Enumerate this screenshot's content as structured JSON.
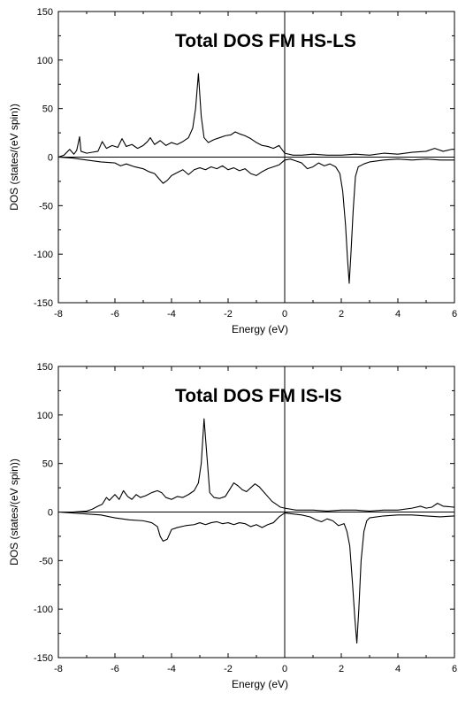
{
  "chart_data": [
    {
      "type": "line",
      "title": "Total DOS FM HS-LS",
      "xlabel": "Energy (eV)",
      "ylabel": "DOS (states/(eV spin))",
      "xlim": [
        -8,
        6
      ],
      "ylim": [
        -150,
        150
      ],
      "xticks": [
        -8,
        -6,
        -4,
        -2,
        0,
        2,
        4,
        6
      ],
      "yticks": [
        150,
        100,
        50,
        0,
        -50,
        -100,
        -150
      ],
      "grid": false,
      "series": [
        {
          "values": [
            [
              -8.0,
              0
            ],
            [
              -7.8,
              2
            ],
            [
              -7.6,
              8
            ],
            [
              -7.45,
              3
            ],
            [
              -7.35,
              7
            ],
            [
              -7.25,
              21
            ],
            [
              -7.2,
              6
            ],
            [
              -7.0,
              4
            ],
            [
              -6.8,
              5
            ],
            [
              -6.6,
              6
            ],
            [
              -6.45,
              16
            ],
            [
              -6.3,
              9
            ],
            [
              -6.1,
              12
            ],
            [
              -5.9,
              10
            ],
            [
              -5.75,
              19
            ],
            [
              -5.6,
              11
            ],
            [
              -5.4,
              13
            ],
            [
              -5.2,
              9
            ],
            [
              -5.0,
              12
            ],
            [
              -4.85,
              16
            ],
            [
              -4.75,
              20
            ],
            [
              -4.6,
              13
            ],
            [
              -4.4,
              17
            ],
            [
              -4.2,
              12
            ],
            [
              -4.0,
              15
            ],
            [
              -3.8,
              13
            ],
            [
              -3.6,
              16
            ],
            [
              -3.4,
              20
            ],
            [
              -3.25,
              30
            ],
            [
              -3.15,
              50
            ],
            [
              -3.05,
              86
            ],
            [
              -2.95,
              42
            ],
            [
              -2.85,
              20
            ],
            [
              -2.7,
              15
            ],
            [
              -2.5,
              18
            ],
            [
              -2.3,
              20
            ],
            [
              -2.1,
              22
            ],
            [
              -1.9,
              23
            ],
            [
              -1.75,
              26
            ],
            [
              -1.6,
              24
            ],
            [
              -1.4,
              22
            ],
            [
              -1.2,
              19
            ],
            [
              -1.0,
              15
            ],
            [
              -0.8,
              12
            ],
            [
              -0.6,
              11
            ],
            [
              -0.4,
              9
            ],
            [
              -0.2,
              12
            ],
            [
              -0.05,
              6
            ],
            [
              0.0,
              4
            ],
            [
              0.3,
              2
            ],
            [
              0.6,
              2
            ],
            [
              1.0,
              3
            ],
            [
              1.5,
              2
            ],
            [
              2.0,
              2
            ],
            [
              2.5,
              3
            ],
            [
              3.0,
              2
            ],
            [
              3.5,
              4
            ],
            [
              4.0,
              3
            ],
            [
              4.5,
              5
            ],
            [
              5.0,
              6
            ],
            [
              5.3,
              9
            ],
            [
              5.6,
              6
            ],
            [
              5.9,
              8
            ],
            [
              6.0,
              8
            ]
          ]
        },
        {
          "values": [
            [
              -8.0,
              0
            ],
            [
              -7.5,
              -1
            ],
            [
              -7.0,
              -3
            ],
            [
              -6.5,
              -5
            ],
            [
              -6.0,
              -6
            ],
            [
              -5.8,
              -9
            ],
            [
              -5.6,
              -7
            ],
            [
              -5.3,
              -10
            ],
            [
              -5.0,
              -12
            ],
            [
              -4.8,
              -15
            ],
            [
              -4.6,
              -17
            ],
            [
              -4.45,
              -22
            ],
            [
              -4.3,
              -27
            ],
            [
              -4.15,
              -24
            ],
            [
              -4.0,
              -19
            ],
            [
              -3.8,
              -16
            ],
            [
              -3.6,
              -13
            ],
            [
              -3.4,
              -18
            ],
            [
              -3.2,
              -13
            ],
            [
              -3.0,
              -11
            ],
            [
              -2.8,
              -13
            ],
            [
              -2.6,
              -10
            ],
            [
              -2.4,
              -12
            ],
            [
              -2.2,
              -9
            ],
            [
              -2.0,
              -13
            ],
            [
              -1.8,
              -11
            ],
            [
              -1.6,
              -14
            ],
            [
              -1.4,
              -12
            ],
            [
              -1.2,
              -17
            ],
            [
              -1.0,
              -19
            ],
            [
              -0.8,
              -15
            ],
            [
              -0.6,
              -12
            ],
            [
              -0.4,
              -10
            ],
            [
              -0.2,
              -8
            ],
            [
              0.0,
              -3
            ],
            [
              0.2,
              -2
            ],
            [
              0.4,
              -4
            ],
            [
              0.6,
              -6
            ],
            [
              0.8,
              -12
            ],
            [
              1.0,
              -10
            ],
            [
              1.2,
              -6
            ],
            [
              1.4,
              -9
            ],
            [
              1.6,
              -7
            ],
            [
              1.8,
              -10
            ],
            [
              1.95,
              -17
            ],
            [
              2.05,
              -35
            ],
            [
              2.15,
              -70
            ],
            [
              2.22,
              -105
            ],
            [
              2.28,
              -130
            ],
            [
              2.34,
              -100
            ],
            [
              2.42,
              -55
            ],
            [
              2.5,
              -20
            ],
            [
              2.6,
              -10
            ],
            [
              2.8,
              -7
            ],
            [
              3.0,
              -5
            ],
            [
              3.5,
              -3
            ],
            [
              4.0,
              -2
            ],
            [
              4.5,
              -3
            ],
            [
              5.0,
              -2
            ],
            [
              5.5,
              -3
            ],
            [
              6.0,
              -3
            ]
          ]
        }
      ]
    },
    {
      "type": "line",
      "title": "Total DOS FM IS-IS",
      "xlabel": "Energy (eV)",
      "ylabel": "DOS (states/(eV spin))",
      "xlim": [
        -8,
        6
      ],
      "ylim": [
        -150,
        150
      ],
      "xticks": [
        -8,
        -6,
        -4,
        -2,
        0,
        2,
        4,
        6
      ],
      "yticks": [
        150,
        100,
        50,
        0,
        -50,
        -100,
        -150
      ],
      "grid": false,
      "series": [
        {
          "values": [
            [
              -8.0,
              0
            ],
            [
              -7.5,
              0
            ],
            [
              -7.0,
              1
            ],
            [
              -6.8,
              3
            ],
            [
              -6.6,
              6
            ],
            [
              -6.45,
              8
            ],
            [
              -6.3,
              15
            ],
            [
              -6.2,
              12
            ],
            [
              -6.0,
              18
            ],
            [
              -5.85,
              13
            ],
            [
              -5.7,
              22
            ],
            [
              -5.55,
              16
            ],
            [
              -5.4,
              13
            ],
            [
              -5.25,
              18
            ],
            [
              -5.1,
              15
            ],
            [
              -4.9,
              17
            ],
            [
              -4.7,
              20
            ],
            [
              -4.5,
              22
            ],
            [
              -4.35,
              20
            ],
            [
              -4.2,
              15
            ],
            [
              -4.0,
              13
            ],
            [
              -3.8,
              16
            ],
            [
              -3.6,
              15
            ],
            [
              -3.4,
              18
            ],
            [
              -3.2,
              22
            ],
            [
              -3.05,
              30
            ],
            [
              -2.95,
              50
            ],
            [
              -2.85,
              96
            ],
            [
              -2.75,
              58
            ],
            [
              -2.65,
              20
            ],
            [
              -2.5,
              15
            ],
            [
              -2.3,
              14
            ],
            [
              -2.1,
              16
            ],
            [
              -1.95,
              23
            ],
            [
              -1.8,
              30
            ],
            [
              -1.65,
              27
            ],
            [
              -1.5,
              23
            ],
            [
              -1.35,
              21
            ],
            [
              -1.2,
              25
            ],
            [
              -1.05,
              29
            ],
            [
              -0.9,
              26
            ],
            [
              -0.75,
              21
            ],
            [
              -0.6,
              16
            ],
            [
              -0.45,
              11
            ],
            [
              -0.3,
              8
            ],
            [
              -0.15,
              5
            ],
            [
              0.0,
              4
            ],
            [
              0.4,
              2
            ],
            [
              1.0,
              2
            ],
            [
              1.5,
              1
            ],
            [
              2.0,
              2
            ],
            [
              2.5,
              2
            ],
            [
              3.0,
              1
            ],
            [
              3.5,
              2
            ],
            [
              4.0,
              2
            ],
            [
              4.5,
              4
            ],
            [
              4.8,
              6
            ],
            [
              5.0,
              4
            ],
            [
              5.2,
              5
            ],
            [
              5.4,
              9
            ],
            [
              5.6,
              6
            ],
            [
              6.0,
              5
            ]
          ]
        },
        {
          "values": [
            [
              -8.0,
              0
            ],
            [
              -7.5,
              -1
            ],
            [
              -7.0,
              -2
            ],
            [
              -6.5,
              -3
            ],
            [
              -6.0,
              -6
            ],
            [
              -5.5,
              -8
            ],
            [
              -5.0,
              -9
            ],
            [
              -4.7,
              -11
            ],
            [
              -4.5,
              -15
            ],
            [
              -4.4,
              -25
            ],
            [
              -4.3,
              -30
            ],
            [
              -4.15,
              -28
            ],
            [
              -4.0,
              -18
            ],
            [
              -3.8,
              -16
            ],
            [
              -3.5,
              -14
            ],
            [
              -3.2,
              -13
            ],
            [
              -3.0,
              -11
            ],
            [
              -2.8,
              -13
            ],
            [
              -2.6,
              -11
            ],
            [
              -2.4,
              -10
            ],
            [
              -2.2,
              -12
            ],
            [
              -2.0,
              -11
            ],
            [
              -1.8,
              -13
            ],
            [
              -1.6,
              -11
            ],
            [
              -1.4,
              -12
            ],
            [
              -1.2,
              -15
            ],
            [
              -1.0,
              -13
            ],
            [
              -0.8,
              -16
            ],
            [
              -0.6,
              -13
            ],
            [
              -0.4,
              -11
            ],
            [
              -0.2,
              -5
            ],
            [
              0.0,
              -1
            ],
            [
              0.3,
              -2
            ],
            [
              0.6,
              -3
            ],
            [
              0.9,
              -5
            ],
            [
              1.1,
              -8
            ],
            [
              1.3,
              -10
            ],
            [
              1.5,
              -7
            ],
            [
              1.7,
              -9
            ],
            [
              1.9,
              -14
            ],
            [
              2.1,
              -12
            ],
            [
              2.2,
              -20
            ],
            [
              2.3,
              -35
            ],
            [
              2.4,
              -75
            ],
            [
              2.48,
              -110
            ],
            [
              2.55,
              -135
            ],
            [
              2.62,
              -100
            ],
            [
              2.7,
              -50
            ],
            [
              2.8,
              -20
            ],
            [
              2.9,
              -9
            ],
            [
              3.0,
              -6
            ],
            [
              3.5,
              -4
            ],
            [
              4.0,
              -3
            ],
            [
              4.5,
              -3
            ],
            [
              5.0,
              -4
            ],
            [
              5.5,
              -5
            ],
            [
              6.0,
              -4
            ]
          ]
        }
      ]
    }
  ]
}
